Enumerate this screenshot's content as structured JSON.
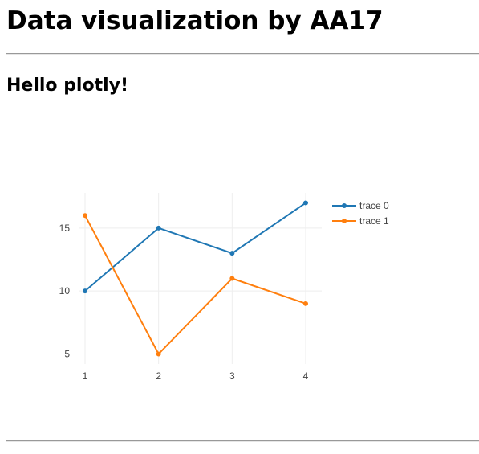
{
  "page": {
    "title": "Data visualization by AA17",
    "subtitle": "Hello plotly!"
  },
  "chart_data": {
    "type": "line",
    "x": [
      1,
      2,
      3,
      4
    ],
    "series": [
      {
        "name": "trace 0",
        "values": [
          10,
          15,
          13,
          17
        ],
        "color": "#1f77b4"
      },
      {
        "name": "trace 1",
        "values": [
          16,
          5,
          11,
          9
        ],
        "color": "#ff7f0e"
      }
    ],
    "xlim": [
      1,
      4
    ],
    "ylim": [
      4.2,
      17.8
    ],
    "x_ticks": [
      "1",
      "2",
      "3",
      "4"
    ],
    "y_ticks": [
      "5",
      "10",
      "15"
    ],
    "grid": true,
    "legend": "top-right",
    "grid_color": "#eeeeee",
    "tick_color": "#444444"
  }
}
